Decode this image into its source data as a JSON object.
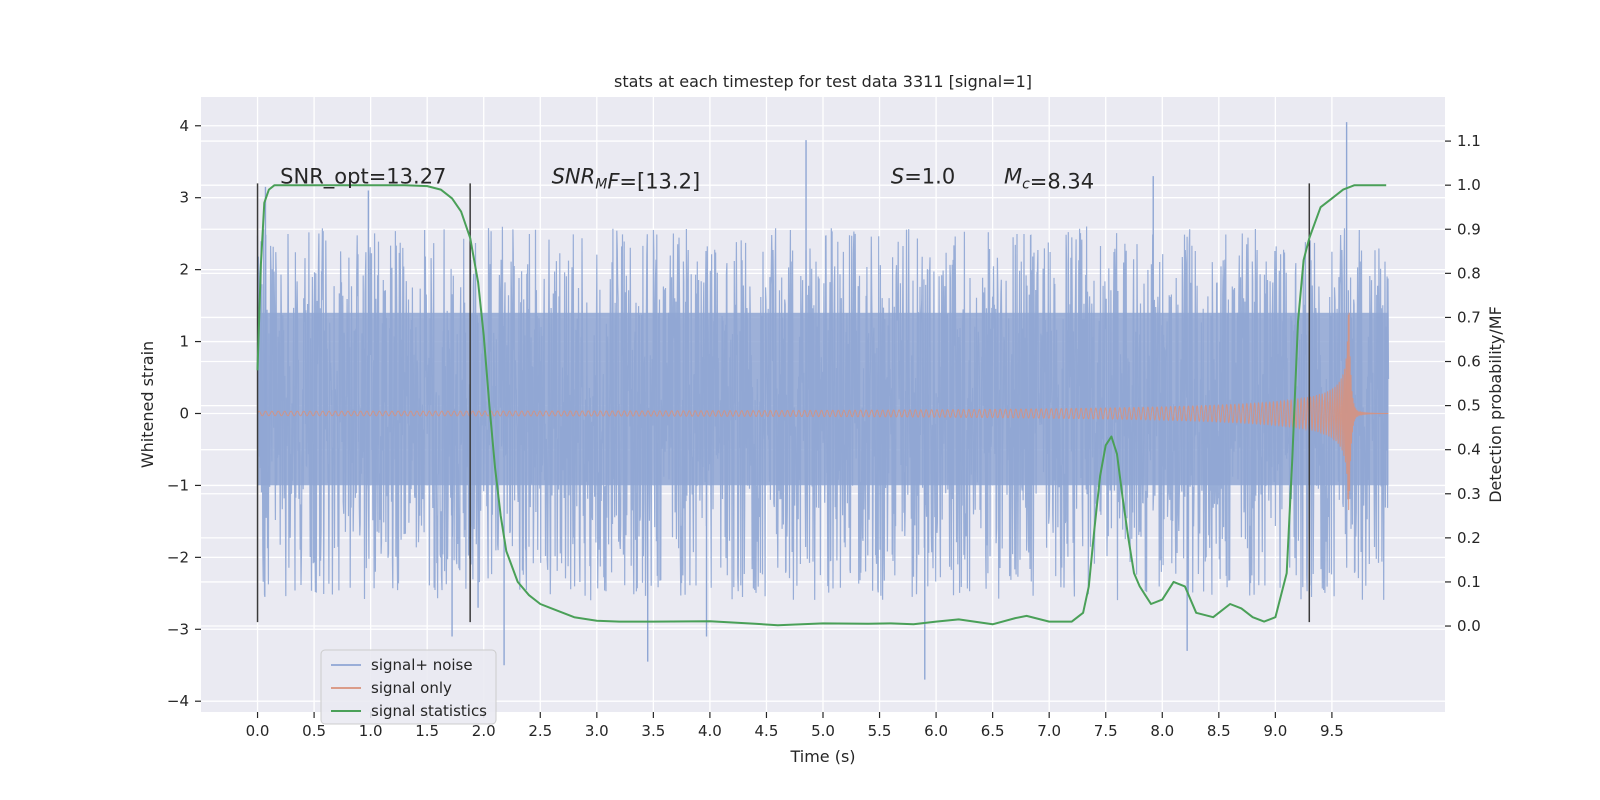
{
  "chart_data": {
    "type": "line",
    "title": "stats at each timestep for test data 3311 [signal=1]",
    "xlabel": "Time (s)",
    "ylabel_left": "Whitened strain",
    "ylabel_right": "Detection probability/MF",
    "xlim": [
      -0.5,
      10.5
    ],
    "ylim_left": [
      -4.15,
      4.4
    ],
    "ylim_right": [
      -0.195,
      1.2
    ],
    "x_ticks": [
      0.0,
      0.5,
      1.0,
      1.5,
      2.0,
      2.5,
      3.0,
      3.5,
      4.0,
      4.5,
      5.0,
      5.5,
      6.0,
      6.5,
      7.0,
      7.5,
      8.0,
      8.5,
      9.0,
      9.5
    ],
    "x_tick_labels": [
      "0.0",
      "0.5",
      "1.0",
      "1.5",
      "2.0",
      "2.5",
      "3.0",
      "3.5",
      "4.0",
      "4.5",
      "5.0",
      "5.5",
      "6.0",
      "6.5",
      "7.0",
      "7.5",
      "8.0",
      "8.5",
      "9.0",
      "9.5"
    ],
    "y_left_ticks": [
      4,
      3,
      2,
      1,
      0,
      -1,
      -2,
      -3,
      -4
    ],
    "y_left_tick_labels": [
      "4",
      "3",
      "2",
      "1",
      "0",
      "−1",
      "−2",
      "−3",
      "−4"
    ],
    "y_right_ticks": [
      1.1,
      1.0,
      0.9,
      0.8,
      0.7,
      0.6,
      0.5,
      0.4,
      0.3,
      0.2,
      0.1,
      0.0
    ],
    "y_right_tick_labels": [
      "1.1",
      "1.0",
      "0.9",
      "0.8",
      "0.7",
      "0.6",
      "0.5",
      "0.4",
      "0.3",
      "0.2",
      "0.1",
      "0.0"
    ],
    "grid": true,
    "legend_placement": "lower-left",
    "annotations": [
      {
        "x": 0.2,
        "y": 3.2,
        "parts": [
          {
            "text": "SNR_opt=13.27",
            "italic": false
          }
        ]
      },
      {
        "x": 2.6,
        "y": 3.2,
        "parts": [
          {
            "text": "SNR",
            "italic": true
          },
          {
            "text": "M",
            "italic": true,
            "sub": true
          },
          {
            "text": "F",
            "italic": true
          },
          {
            "text": "=[13.2]",
            "italic": false
          }
        ]
      },
      {
        "x": 5.6,
        "y": 3.2,
        "parts": [
          {
            "text": "S",
            "italic": true
          },
          {
            "text": "=1.0",
            "italic": false
          }
        ]
      },
      {
        "x": 6.6,
        "y": 3.2,
        "parts": [
          {
            "text": "M",
            "italic": true
          },
          {
            "text": "c",
            "italic": true,
            "sub": true
          },
          {
            "text": "=8.34",
            "italic": false
          }
        ]
      }
    ],
    "vertical_markers": {
      "x": [
        0.0,
        1.88,
        9.3
      ],
      "y_range": [
        -2.9,
        3.2
      ],
      "color": "#3a3a3a"
    },
    "series": [
      {
        "name": "signal+ noise",
        "axis": "left",
        "color": "#8fa6d4",
        "style": "noise",
        "x_range": [
          0.0,
          10.0
        ],
        "core_band": [
          -1.0,
          1.4
        ],
        "typical_peak": [
          2.8,
          -2.3
        ],
        "outliers": [
          {
            "x": 0.07,
            "y": 3.15
          },
          {
            "x": 1.72,
            "y": -3.1
          },
          {
            "x": 2.18,
            "y": -3.5
          },
          {
            "x": 3.45,
            "y": -3.45
          },
          {
            "x": 4.85,
            "y": 3.8
          },
          {
            "x": 5.9,
            "y": -3.7
          },
          {
            "x": 8.22,
            "y": -3.3
          },
          {
            "x": 9.63,
            "y": 4.05
          },
          {
            "x": 7.92,
            "y": 3.3
          },
          {
            "x": 0.98,
            "y": 3.1
          },
          {
            "x": 1.95,
            "y": -2.7
          },
          {
            "x": 3.97,
            "y": -3.1
          }
        ]
      },
      {
        "name": "signal only",
        "axis": "left",
        "color": "#d9907a",
        "style": "chirp",
        "x_range": [
          0.0,
          10.0
        ],
        "merger_time": 9.65,
        "peak_amplitude": 1.55
      },
      {
        "name": "signal statistics",
        "axis": "right",
        "color": "#4aa058",
        "style": "line",
        "x": [
          0.0,
          0.03,
          0.06,
          0.1,
          0.15,
          0.2,
          0.3,
          0.5,
          1.0,
          1.3,
          1.5,
          1.62,
          1.72,
          1.8,
          1.88,
          1.95,
          2.0,
          2.05,
          2.1,
          2.15,
          2.2,
          2.3,
          2.4,
          2.5,
          2.6,
          2.8,
          3.0,
          3.2,
          3.5,
          4.0,
          4.2,
          4.4,
          4.6,
          5.0,
          5.4,
          5.6,
          5.8,
          6.0,
          6.2,
          6.5,
          6.7,
          6.8,
          7.0,
          7.2,
          7.3,
          7.35,
          7.4,
          7.45,
          7.5,
          7.55,
          7.6,
          7.65,
          7.7,
          7.75,
          7.8,
          7.85,
          7.9,
          8.0,
          8.1,
          8.2,
          8.3,
          8.45,
          8.6,
          8.7,
          8.8,
          8.9,
          9.0,
          9.1,
          9.15,
          9.2,
          9.25,
          9.3,
          9.4,
          9.5,
          9.6,
          9.7,
          9.8,
          9.9,
          9.98
        ],
        "values": [
          0.58,
          0.82,
          0.96,
          0.99,
          1.0,
          1.0,
          1.0,
          1.0,
          1.0,
          1.0,
          0.998,
          0.99,
          0.97,
          0.94,
          0.88,
          0.78,
          0.66,
          0.5,
          0.36,
          0.25,
          0.17,
          0.1,
          0.07,
          0.05,
          0.04,
          0.02,
          0.012,
          0.01,
          0.01,
          0.011,
          0.008,
          0.005,
          0.002,
          0.006,
          0.005,
          0.006,
          0.004,
          0.01,
          0.015,
          0.004,
          0.018,
          0.023,
          0.01,
          0.01,
          0.03,
          0.09,
          0.22,
          0.34,
          0.41,
          0.43,
          0.39,
          0.29,
          0.2,
          0.12,
          0.09,
          0.07,
          0.05,
          0.06,
          0.1,
          0.09,
          0.03,
          0.02,
          0.05,
          0.04,
          0.02,
          0.01,
          0.02,
          0.12,
          0.38,
          0.69,
          0.83,
          0.88,
          0.95,
          0.97,
          0.99,
          1.0,
          1.0,
          1.0,
          1.0
        ]
      }
    ]
  }
}
